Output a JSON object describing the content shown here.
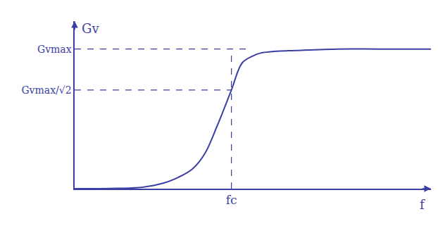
{
  "chart_data": {
    "type": "line",
    "x": [
      0,
      0.6,
      1.2,
      1.9,
      2.5,
      2.9,
      3.3,
      3.65,
      4.0,
      4.4,
      4.7,
      5.0,
      5.2,
      5.7,
      6.2,
      7.4,
      8.5,
      10
    ],
    "values": [
      0,
      0,
      0.002,
      0.01,
      0.04,
      0.08,
      0.14,
      0.25,
      0.45,
      0.707,
      0.9,
      0.95,
      0.97,
      0.985,
      0.99,
      1.0,
      1.0,
      1.0
    ],
    "color": "#3b3fa3",
    "xlabel": "f",
    "ylabel": "Gv",
    "xlim": [
      0,
      10
    ],
    "ylim": [
      0,
      1.2
    ],
    "xticks": [
      {
        "value": 4.4,
        "label": "fc"
      }
    ],
    "yticks": [
      {
        "value": 0.707,
        "label": "Gvmax/√2"
      },
      {
        "value": 1,
        "label": "Gvmax"
      }
    ],
    "grid": false,
    "line_style": "solid"
  }
}
